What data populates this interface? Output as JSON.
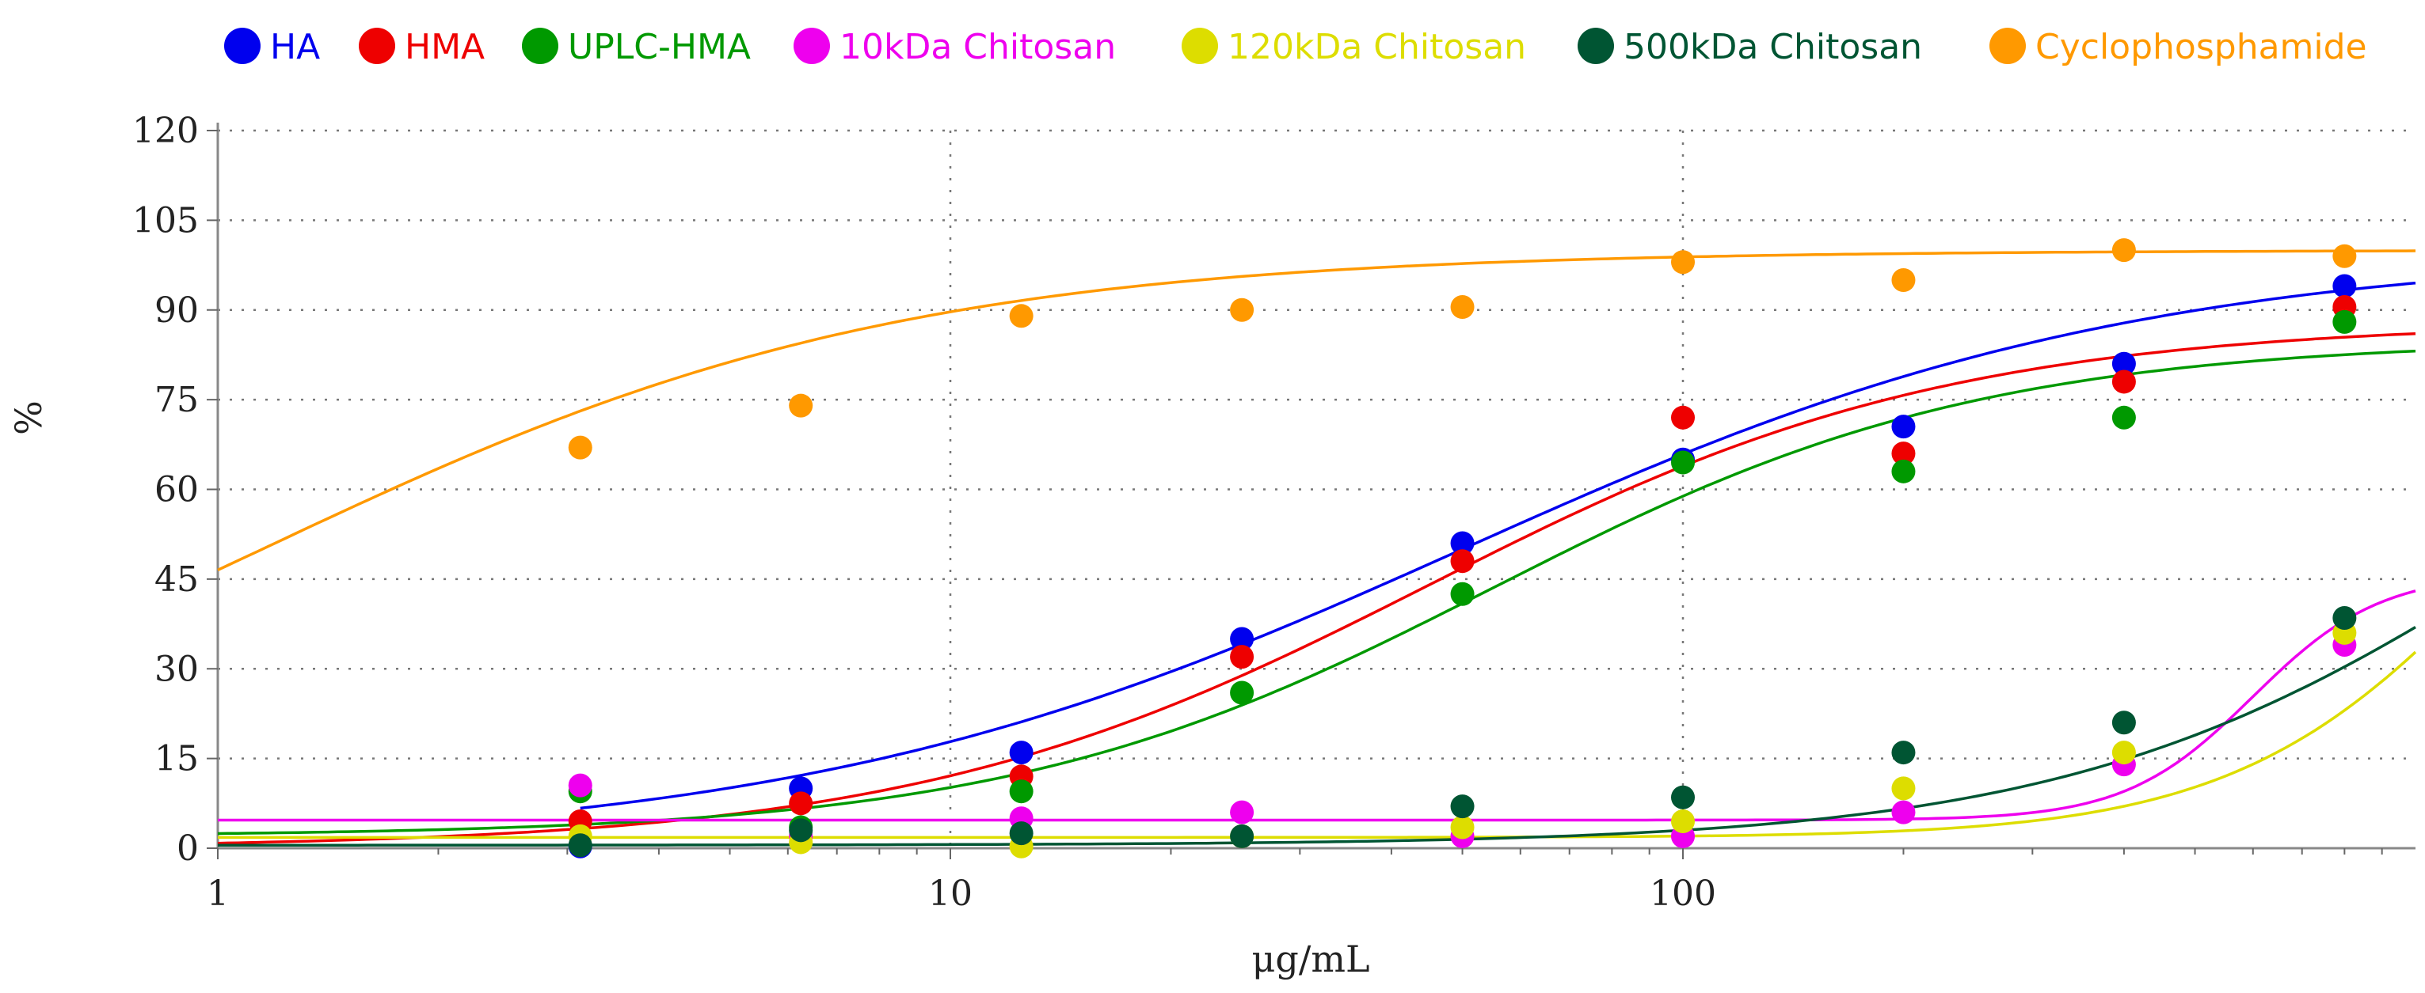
{
  "chart_data": {
    "type": "scatter",
    "title": "",
    "xlabel": "μg/mL",
    "ylabel": "%",
    "xscale": "log",
    "xlim": [
      1,
      1000
    ],
    "ylim": [
      0,
      120
    ],
    "x_ticks": [
      1,
      10,
      100
    ],
    "x_tick_labels": [
      "1",
      "10",
      "100"
    ],
    "y_ticks": [
      0,
      15,
      30,
      45,
      60,
      75,
      90,
      105,
      120
    ],
    "y_tick_labels": [
      "0",
      "15",
      "30",
      "45",
      "60",
      "75",
      "90",
      "105",
      "120"
    ],
    "grid": true,
    "legend_position": "top",
    "x": [
      3.125,
      6.25,
      12.5,
      25,
      50,
      100,
      200,
      400,
      800
    ],
    "series": [
      {
        "name": "HA",
        "color": "#0000ee",
        "values": [
          0.3,
          10,
          16,
          35,
          51,
          65,
          70.5,
          81,
          94
        ],
        "fit": {
          "bottom": 0,
          "top": 100,
          "ec50": 50,
          "hill": 0.95,
          "start": 3.125
        }
      },
      {
        "name": "HMA",
        "color": "#ee0000",
        "values": [
          4.5,
          7.5,
          12,
          32,
          48,
          72,
          66,
          78,
          90.5
        ],
        "fit": {
          "bottom": 0,
          "top": 88,
          "ec50": 45,
          "hill": 1.22,
          "start": 1
        }
      },
      {
        "name": "UPLC-HMA",
        "color": "#009900",
        "values": [
          9.5,
          3.5,
          9.5,
          26,
          42.5,
          64.5,
          63,
          72,
          88
        ],
        "fit": {
          "bottom": 2,
          "top": 85,
          "ec50": 55,
          "hill": 1.3,
          "start": 1
        }
      },
      {
        "name": "10kDa Chitosan",
        "color": "#ee00ee",
        "values": [
          10.5,
          2,
          5,
          6,
          2,
          2,
          6,
          14,
          34
        ],
        "fit": {
          "bottom": 4.7,
          "top": 46,
          "ec50": 600,
          "hill": 5,
          "start": 1
        }
      },
      {
        "name": "120kDa Chitosan",
        "color": "#dddd00",
        "values": [
          2,
          1,
          0.3,
          2,
          3.5,
          4.5,
          10,
          16,
          36
        ],
        "fit": {
          "bottom": 1.8,
          "top": 100,
          "ec50": 1400,
          "hill": 2.3,
          "start": 1
        }
      },
      {
        "name": "500kDa Chitosan",
        "color": "#005533",
        "values": [
          0.5,
          3,
          2.5,
          2,
          7,
          8.5,
          16,
          21,
          38.5
        ],
        "fit": {
          "bottom": 0.5,
          "top": 100,
          "ec50": 1500,
          "hill": 1.35,
          "start": 1
        }
      },
      {
        "name": "Cyclophosphamide",
        "color": "#ff9900",
        "values": [
          67,
          74,
          89,
          90,
          90.5,
          98,
          95,
          100,
          99
        ],
        "fit": {
          "bottom": 0,
          "top": 100,
          "ec50": 1.15,
          "hill": 1.0,
          "start": 1
        }
      }
    ]
  }
}
